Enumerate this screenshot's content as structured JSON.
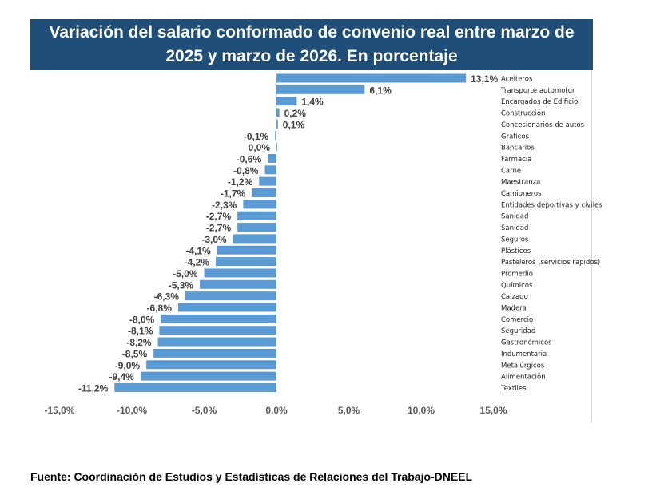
{
  "header": {
    "title": "Variación del salario conformado de convenio real entre marzo de 2025 y marzo de 2026. En porcentaje"
  },
  "footer": {
    "source": "Fuente: Coordinación de Estudios y Estadísticas de Relaciones del Trabajo-DNEEL"
  },
  "colors": {
    "bar": "#5b9bd5",
    "title_bg": "#1f4e79"
  },
  "chart_data": {
    "type": "bar",
    "orientation": "horizontal",
    "title": "Variación del salario conformado de convenio real entre marzo de 2025 y marzo de 2026. En porcentaje",
    "xlim": [
      -15,
      15
    ],
    "x_ticks": [
      -15,
      -10,
      -5,
      0,
      5,
      10,
      15
    ],
    "x_tick_labels": [
      "-15,0%",
      "-10,0%",
      "-5,0%",
      "0,0%",
      "5,0%",
      "10,0%",
      "15,0%"
    ],
    "grid": false,
    "categories": [
      "Aceiteros",
      "Transporte automotor",
      "Encargados de Edificio",
      "Construcción",
      "Concesionarios de autos",
      "Gráficos",
      "Bancarios",
      "Farmacia",
      "Carne",
      "Maestranza",
      "Camioneros",
      "Entidades deportivas y civiles",
      "Sanidad",
      "Sanidad",
      "Seguros",
      "Plásticos",
      "Pasteleros (servicios rápidos)",
      "Promedio",
      "Químicos",
      "Calzado",
      "Madera",
      "Comercio",
      "Seguridad",
      "Gastronómicos",
      "Indumentaria",
      "Metalúrgicos",
      "Alimentación",
      "Textiles"
    ],
    "values": [
      13.1,
      6.1,
      1.4,
      0.2,
      0.1,
      -0.1,
      0.0,
      -0.6,
      -0.8,
      -1.2,
      -1.7,
      -2.3,
      -2.7,
      -2.7,
      -3.0,
      -4.1,
      -4.2,
      -5.0,
      -5.3,
      -6.3,
      -6.8,
      -8.0,
      -8.1,
      -8.2,
      -8.5,
      -9.0,
      -9.4,
      -11.2
    ],
    "value_labels": [
      "13,1%",
      "6,1%",
      "1,4%",
      "0,2%",
      "0,1%",
      "-0,1%",
      "0,0%",
      "-0,6%",
      "-0,8%",
      "-1,2%",
      "-1,7%",
      "-2,3%",
      "-2,7%",
      "-2,7%",
      "-3,0%",
      "-4,1%",
      "-4,2%",
      "-5,0%",
      "-5,3%",
      "-6,3%",
      "-6,8%",
      "-8,0%",
      "-8,1%",
      "-8,2%",
      "-8,5%",
      "-9,0%",
      "-9,4%",
      "-11,2%"
    ]
  }
}
